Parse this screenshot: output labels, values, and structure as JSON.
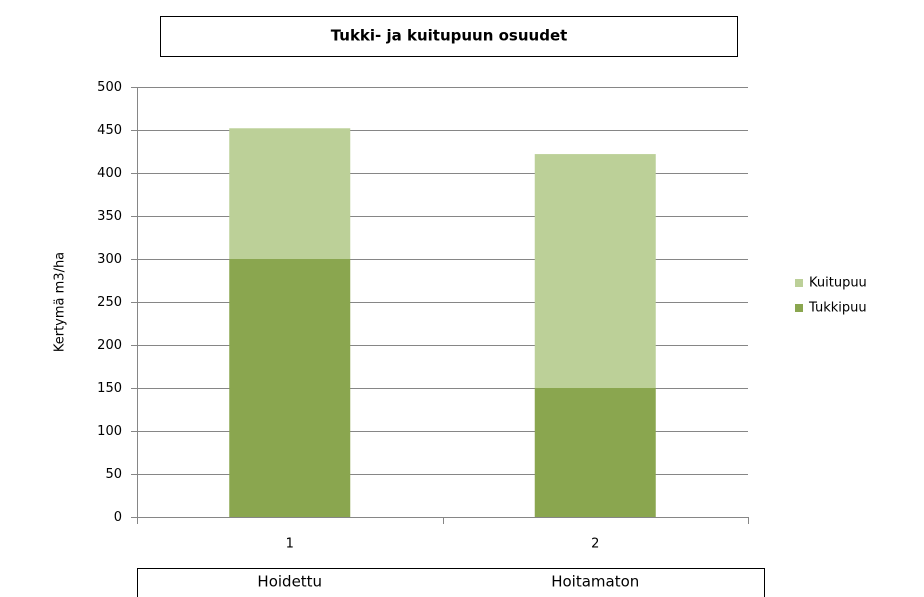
{
  "chart_data": {
    "type": "stacked_bar",
    "title": "Tukki- ja kuitupuun osuudet",
    "ylabel": "Kertymä m3/ha",
    "categories": [
      "1",
      "2"
    ],
    "category_labels": [
      "Hoidettu",
      "Hoitamaton"
    ],
    "series": [
      {
        "name": "Tukkipuu",
        "color": "#8aa64f",
        "values": [
          300,
          150
        ]
      },
      {
        "name": "Kuitupuu",
        "color": "#bcd098",
        "values": [
          152,
          272
        ]
      }
    ],
    "ylim": [
      0,
      500
    ],
    "yticks": [
      0,
      50,
      100,
      150,
      200,
      250,
      300,
      350,
      400,
      450,
      500
    ],
    "grid": true,
    "legend": "right"
  }
}
